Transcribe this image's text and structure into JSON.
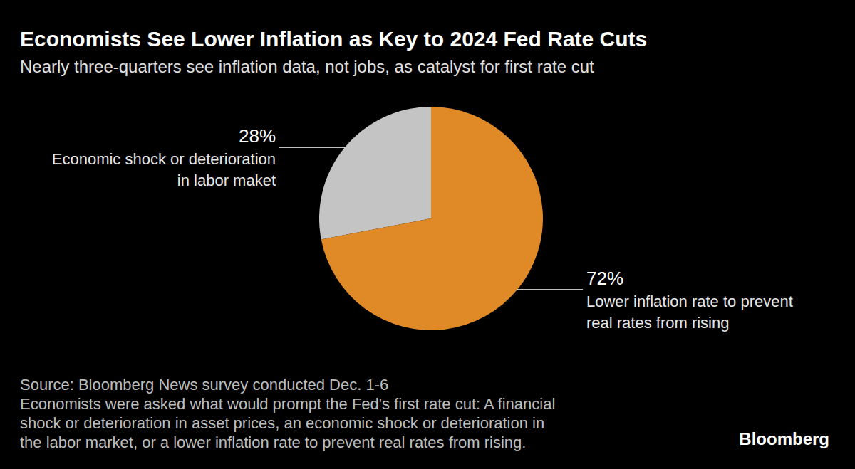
{
  "chart_data": {
    "type": "pie",
    "title": "Economists See Lower Inflation as Key to 2024 Fed Rate Cuts",
    "subtitle": "Nearly three-quarters see inflation data, not jobs, as catalyst for first rate cut",
    "categories": [
      "Economic shock or deterioration\nin labor maket",
      "Lower inflation rate to prevent\nreal rates from rising"
    ],
    "values": [
      28,
      72
    ],
    "value_labels": [
      "28%",
      "72%"
    ],
    "colors": [
      "#c4c4c4",
      "#e08a27"
    ],
    "data_labels": true,
    "source": "Source: Bloomberg News survey conducted Dec. 1-6",
    "note": [
      "Economists were asked what would prompt the Fed's first rate cut: A financial",
      "shock or deterioration in asset prices, an economic shock or deterioration in",
      "the labor market, or a lower inflation rate to prevent real rates from rising."
    ],
    "credit": "Bloomberg"
  }
}
